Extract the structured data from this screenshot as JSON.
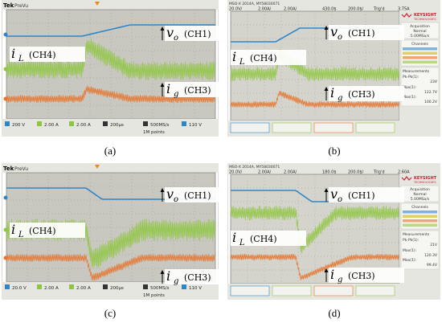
{
  "figure": {
    "panels": [
      {
        "id": "a",
        "caption": "(a)",
        "scope": "tek",
        "load_step": "up",
        "header": {
          "brand": "Tek",
          "mode": "PreVu"
        },
        "footer": {
          "row1": [
            "200 V",
            "2.00 A",
            "2.00 A",
            "200µs",
            "500MS/s",
            "110 V"
          ],
          "row2": [
            "1M points"
          ]
        },
        "labels": {
          "vo": {
            "sym": "v",
            "sub": "o",
            "ch": "(CH1)"
          },
          "iL": {
            "sym": "i",
            "sub": "L",
            "ch": "(CH4)"
          },
          "ig": {
            "sym": "i",
            "sub": "g",
            "ch": "(CH3)"
          }
        }
      },
      {
        "id": "b",
        "caption": "(b)",
        "scope": "keysight",
        "load_step": "up",
        "header": {
          "model": "MSO-X 2014A, MY58030071",
          "readouts": [
            "20.0V/",
            "2.00A/",
            "2.00A/",
            "430.0$",
            "200.0$/",
            "Trig'd"
          ],
          "trig": "3.75A"
        },
        "side": {
          "brand": "KEYSIGHT",
          "sub": "TECHNOLOGIES",
          "acq_title": "Acquisition",
          "acq_mode": "Normal",
          "acq_rate": "5.00MSa/s",
          "channels_title": "Channels",
          "measure_title": "Measurements",
          "m1_label": "Pk-Pk(1):",
          "m1_value": "23V",
          "m2_label": "Max(1):",
          "m2_value": "122.7V",
          "m3_label": "Max(1):",
          "m3_value": "100.2V"
        },
        "labels": {
          "vo": {
            "sym": "v",
            "sub": "o",
            "ch": "(CH1)"
          },
          "iL": {
            "sym": "i",
            "sub": "L",
            "ch": "(CH4)"
          },
          "ig": {
            "sym": "i",
            "sub": "g",
            "ch": "(CH3)"
          }
        }
      },
      {
        "id": "c",
        "caption": "(c)",
        "scope": "tek",
        "load_step": "down",
        "header": {
          "brand": "Tek",
          "mode": "PreVu"
        },
        "footer": {
          "row1": [
            "20.0 V",
            "2.00 A",
            "2.00 A",
            "200µs",
            "500MS/s",
            "110 V"
          ],
          "row2": [
            "1M points"
          ]
        },
        "labels": {
          "vo": {
            "sym": "v",
            "sub": "o",
            "ch": "(CH1)"
          },
          "iL": {
            "sym": "i",
            "sub": "L",
            "ch": "(CH4)"
          },
          "ig": {
            "sym": "i",
            "sub": "g",
            "ch": "(CH3)"
          }
        }
      },
      {
        "id": "d",
        "caption": "(d)",
        "scope": "keysight",
        "load_step": "down",
        "header": {
          "model": "MSO-X 2014A, MY58030071",
          "readouts": [
            "20.0V/",
            "2.00A/",
            "2.00A/",
            "180.0$",
            "200.0$/",
            "Trig'd"
          ],
          "trig": "2.60A"
        },
        "side": {
          "brand": "KEYSIGHT",
          "sub": "TECHNOLOGIES",
          "acq_title": "Acquisition",
          "acq_mode": "Normal",
          "acq_rate": "5.00MSa/s",
          "channels_title": "Channels",
          "measure_title": "Measurements",
          "m1_label": "Pk-Pk(1):",
          "m1_value": "21V",
          "m2_label": "Max(1):",
          "m2_value": "120.3V",
          "m3_label": "Max(1):",
          "m3_value": "99.4V"
        },
        "labels": {
          "vo": {
            "sym": "v",
            "sub": "o",
            "ch": "(CH1)"
          },
          "iL": {
            "sym": "i",
            "sub": "L",
            "ch": "(CH4)"
          },
          "ig": {
            "sym": "i",
            "sub": "g",
            "ch": "(CH3)"
          }
        }
      }
    ],
    "colors": {
      "vo": "#2e86c8",
      "iL": "#8ec63f",
      "ig": "#e8722a",
      "tek_bg": "#c8c8c0",
      "tek_grid": "#8a8a82",
      "key_bg": "#d4d4cc",
      "key_side": "#e6e6e0",
      "key_brand": "#cc1f2f"
    }
  }
}
